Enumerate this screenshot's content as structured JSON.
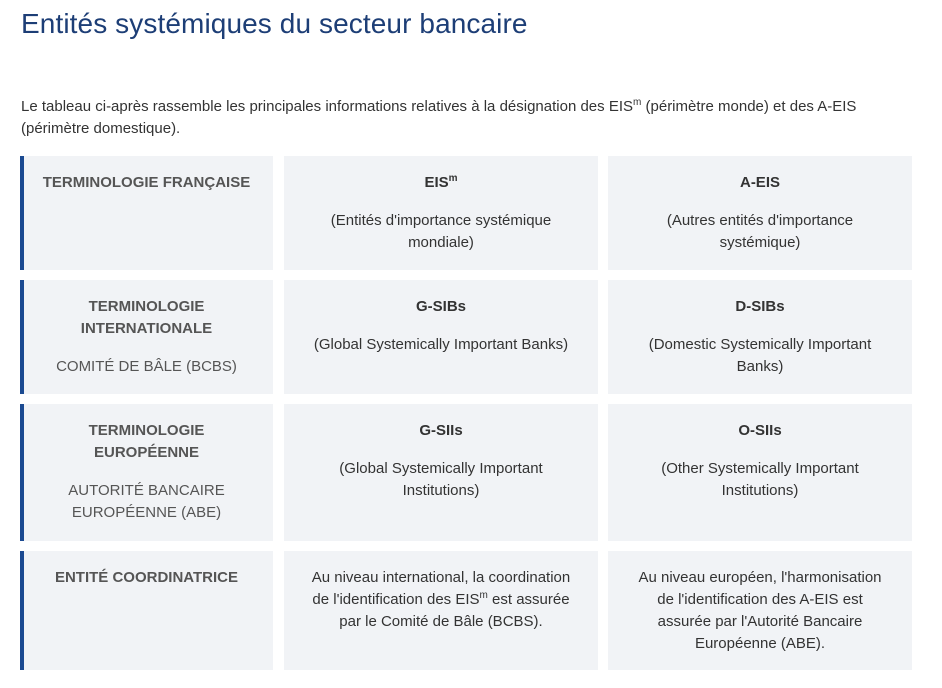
{
  "page": {
    "title": "Entités systémiques du secteur bancaire",
    "intro": {
      "text_before": "Le tableau ci-après rassemble les principales informations relatives à la désignation des EIS",
      "sup": "m",
      "text_after": " (périmètre monde) et des A-EIS (périmètre domestique)."
    }
  },
  "table": {
    "rows": [
      {
        "label": "TERMINOLOGIE FRANÇAISE",
        "sublabel": "",
        "col1_title": "EIS",
        "col1_title_sup": "m",
        "col1_desc": "(Entités d'importance systémique mondiale)",
        "col2_title": "A-EIS",
        "col2_desc": "(Autres entités d'importance systémique)"
      },
      {
        "label": "TERMINOLOGIE INTERNATIONALE",
        "sublabel": "COMITÉ DE BÂLE (BCBS)",
        "col1_title": "G-SIBs",
        "col1_desc": "(Global Systemically Important Banks)",
        "col2_title": "D-SIBs",
        "col2_desc": "(Domestic Systemically Important Banks)"
      },
      {
        "label": "TERMINOLOGIE EUROPÉENNE",
        "sublabel": "AUTORITÉ BANCAIRE EUROPÉENNE (ABE)",
        "col1_title": "G-SIIs",
        "col1_desc": "(Global Systemically Important Institutions)",
        "col2_title": "O-SIIs",
        "col2_desc": "(Other Systemically Important Institutions)"
      },
      {
        "label": "ENTITÉ COORDINATRICE",
        "col1_text_before": "Au niveau international, la coordination de l'identification des EIS",
        "col1_text_sup": "m",
        "col1_text_after": " est assurée par le Comité de Bâle (BCBS).",
        "col2_text": "Au niveau européen, l'harmonisation de l'identification des A-EIS est assurée par l'Autorité Bancaire Européenne (ABE)."
      }
    ]
  },
  "colors": {
    "title": "#1d3e76",
    "accent_border": "#1b4a91",
    "cell_background": "#f1f3f6",
    "label_text": "#555555",
    "body_text": "#333333"
  }
}
